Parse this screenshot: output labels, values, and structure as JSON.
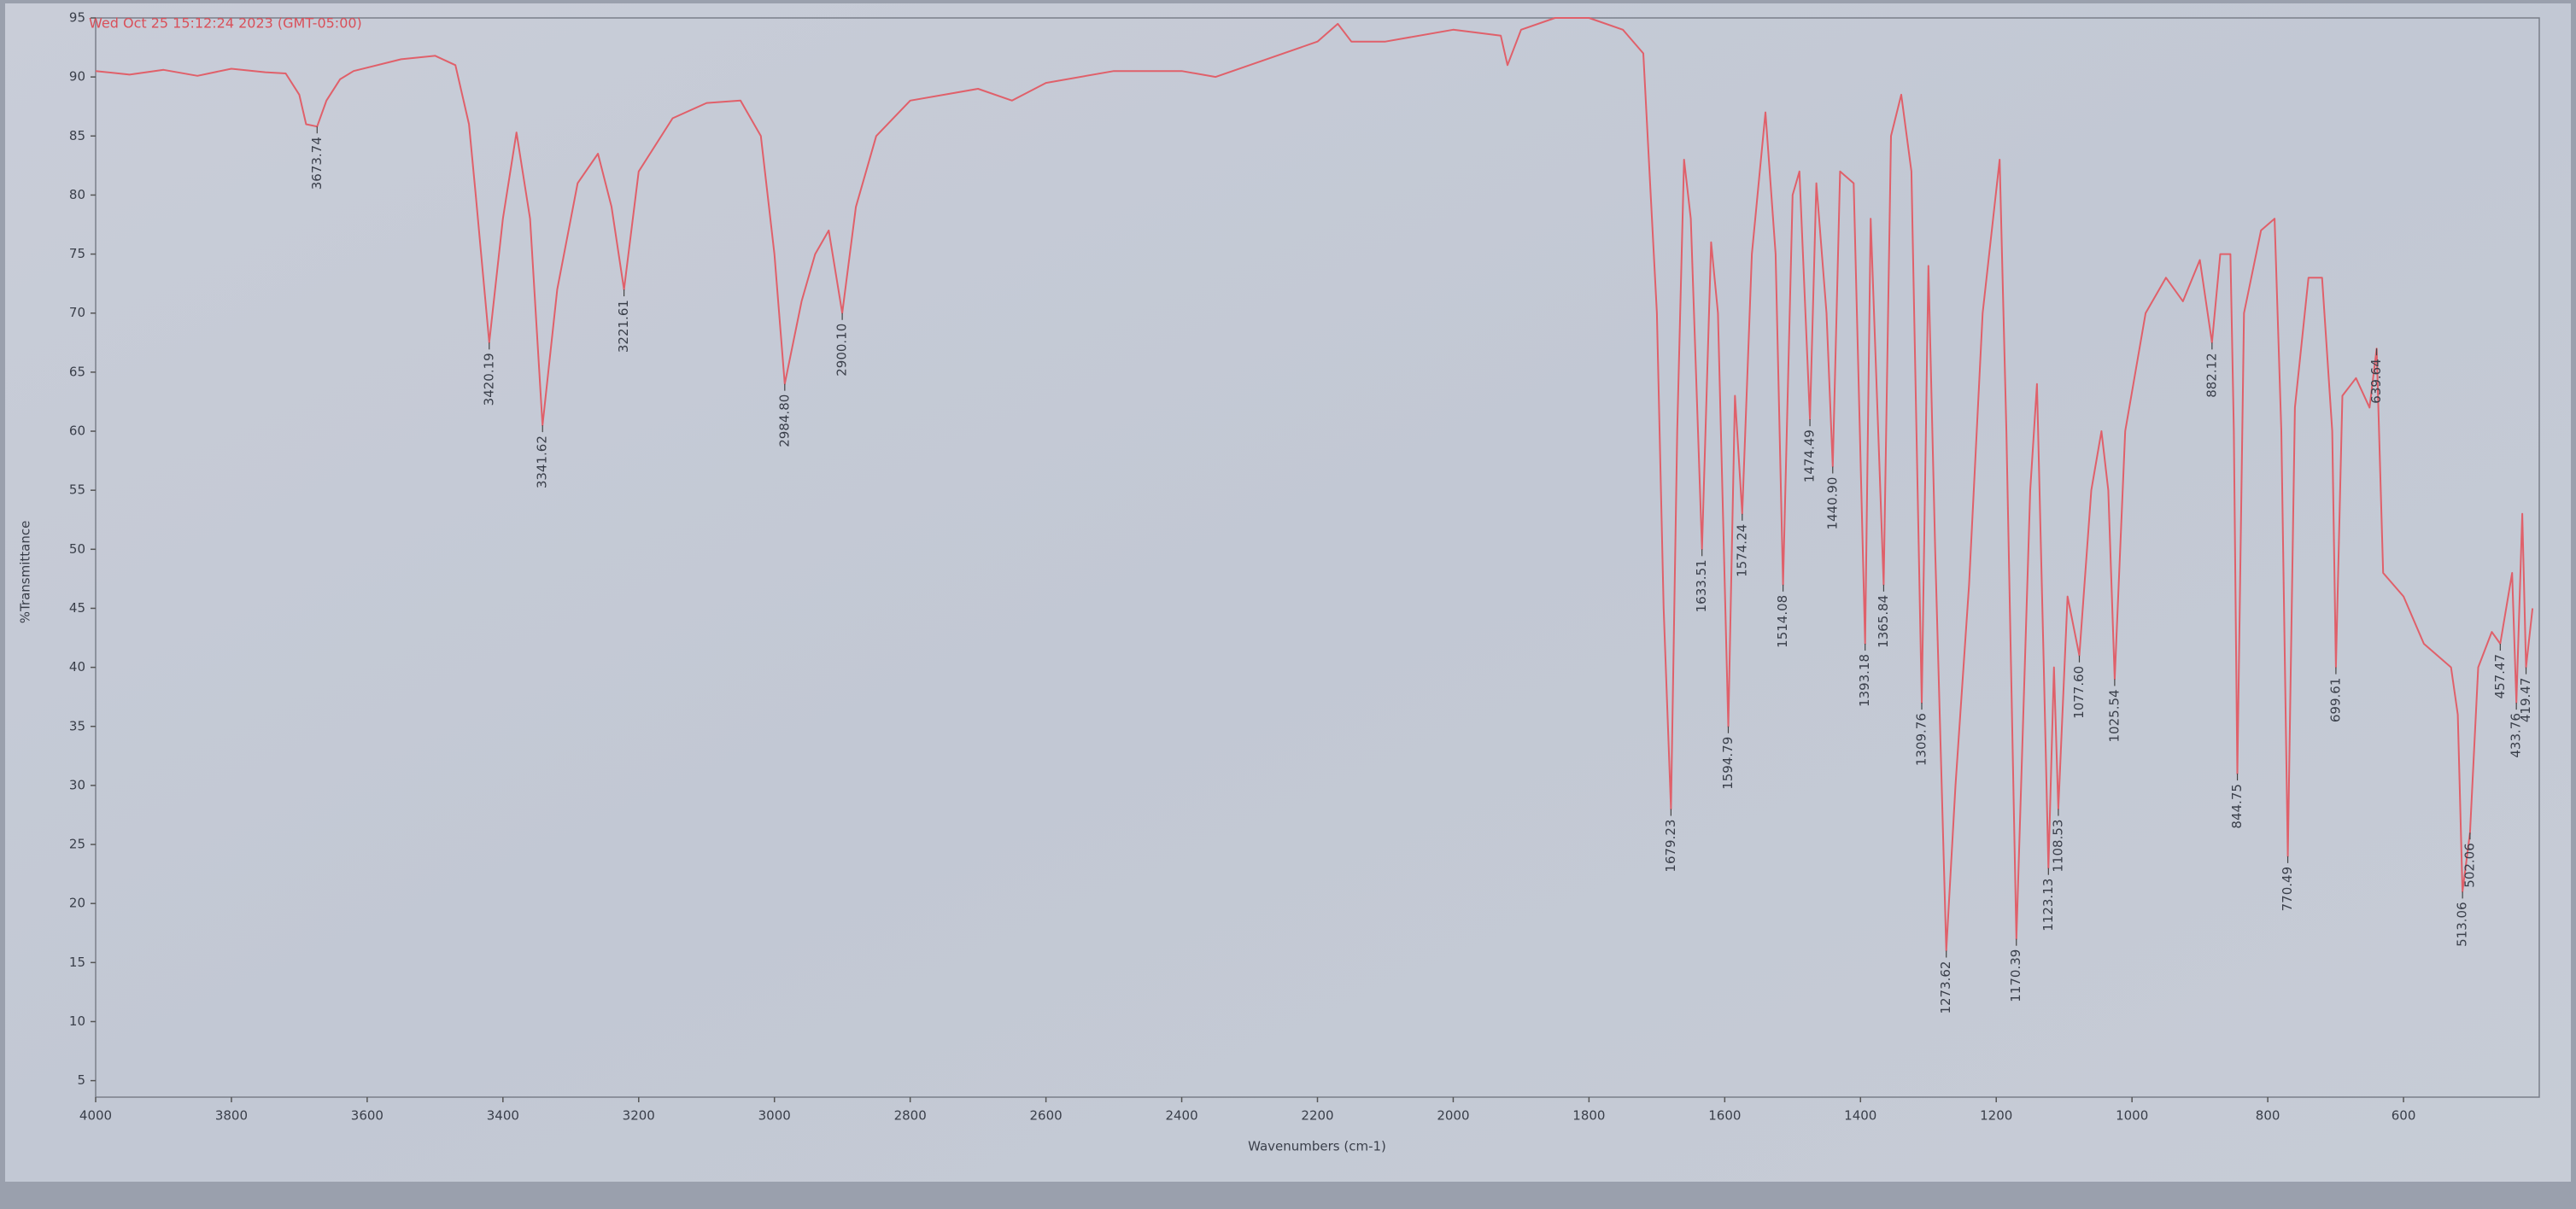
{
  "chart_data": {
    "type": "line",
    "title": "Wed Oct 25 15:12:24 2023 (GMT-05:00)",
    "x_label": "Wavenumbers (cm-1)",
    "y_label": "%Transmittance",
    "color": "#e0606a",
    "xlim": [
      4000,
      400
    ],
    "xticks": [
      4000,
      3800,
      3600,
      3400,
      3200,
      3000,
      2800,
      2600,
      2400,
      2200,
      2000,
      1800,
      1600,
      1400,
      1200,
      1000,
      800,
      600
    ],
    "ylim": [
      3.6,
      95
    ],
    "yticks": [
      5,
      10,
      15,
      20,
      25,
      30,
      35,
      40,
      45,
      50,
      55,
      60,
      65,
      70,
      75,
      80,
      85,
      90,
      95
    ],
    "x": [
      4000,
      3950,
      3900,
      3850,
      3800,
      3750,
      3720,
      3700,
      3690,
      3673.74,
      3660,
      3640,
      3620,
      3550,
      3500,
      3470,
      3450,
      3440,
      3420.19,
      3400,
      3380,
      3360,
      3341.62,
      3320,
      3290,
      3260,
      3240,
      3221.61,
      3200,
      3150,
      3100,
      3050,
      3020,
      3000,
      2984.8,
      2960,
      2940,
      2920,
      2900.1,
      2880,
      2850,
      2800,
      2700,
      2650,
      2600,
      2500,
      2400,
      2350,
      2300,
      2200,
      2170,
      2150,
      2100,
      2000,
      1930,
      1920,
      1900,
      1850,
      1800,
      1750,
      1720,
      1700,
      1690,
      1679.23,
      1670,
      1660,
      1650,
      1633.51,
      1620,
      1610,
      1594.79,
      1585,
      1574.24,
      1560,
      1540,
      1525,
      1514.08,
      1500,
      1490,
      1474.49,
      1465,
      1450,
      1440.9,
      1430,
      1410,
      1393.18,
      1385,
      1365.84,
      1355,
      1340,
      1325,
      1309.76,
      1300,
      1290,
      1273.62,
      1260,
      1240,
      1220,
      1195,
      1185,
      1170.39,
      1150,
      1140,
      1130,
      1123.13,
      1115,
      1108.53,
      1095,
      1077.6,
      1060,
      1045,
      1035,
      1025.54,
      1010,
      980,
      950,
      925,
      900,
      882.12,
      870,
      855,
      850,
      844.75,
      835,
      810,
      790,
      780,
      770.49,
      760,
      740,
      720,
      705,
      699.61,
      690,
      670,
      650,
      639.64,
      630,
      600,
      570,
      530,
      520,
      513.06,
      502.06,
      490,
      470,
      457.47,
      440,
      433.76,
      425,
      419.47,
      410
    ],
    "values": [
      90.5,
      90.2,
      90.6,
      90.1,
      90.7,
      90.4,
      90.3,
      88.5,
      86,
      85.8,
      88,
      89.8,
      90.5,
      91.5,
      91.8,
      91,
      86,
      80,
      67.5,
      78,
      85.3,
      78,
      60.5,
      72,
      81,
      83.5,
      79,
      72,
      82,
      86.5,
      87.8,
      88,
      85,
      75,
      64,
      71,
      75,
      77,
      70,
      79,
      85,
      88,
      89,
      88,
      89.5,
      90.5,
      90.5,
      90,
      91,
      93,
      94.5,
      93,
      93,
      94,
      93.5,
      91,
      94,
      95,
      95,
      94,
      92,
      70,
      45,
      28,
      60,
      83,
      78,
      50,
      76,
      70,
      35,
      63,
      53,
      75,
      87,
      75,
      47,
      80,
      82,
      61,
      81,
      70,
      57,
      82,
      81,
      42,
      78,
      47,
      85,
      88.5,
      82,
      37,
      74,
      50,
      16,
      30,
      47,
      70,
      83,
      60,
      17,
      55,
      64,
      40,
      23,
      40,
      28,
      46,
      41,
      55,
      60,
      55,
      39,
      60,
      70,
      73,
      71,
      74.5,
      67.5,
      75,
      75,
      60,
      31,
      70,
      77,
      78,
      60,
      24,
      62,
      73,
      73,
      60,
      40,
      63,
      64.5,
      62,
      67,
      48,
      46,
      42,
      40,
      36,
      21,
      26,
      40,
      43,
      42,
      48,
      37,
      53,
      40,
      45
    ],
    "peaks": {
      "x": [
        3673.74,
        3420.19,
        3341.62,
        3221.61,
        2984.8,
        2900.1,
        1679.23,
        1633.51,
        1594.79,
        1574.24,
        1514.08,
        1474.49,
        1440.9,
        1393.18,
        1365.84,
        1309.76,
        1273.62,
        1170.39,
        1123.13,
        1108.53,
        1077.6,
        1025.54,
        882.12,
        844.75,
        770.49,
        699.61,
        639.64,
        513.06,
        502.06,
        457.47,
        433.76,
        419.47
      ],
      "y": [
        85.8,
        67.5,
        60.5,
        72,
        64,
        70,
        28,
        50,
        35,
        53,
        47,
        61,
        57,
        42,
        47,
        37,
        16,
        17,
        23,
        28,
        41,
        39,
        67.5,
        31,
        24,
        40,
        67,
        21,
        26,
        42,
        37,
        40
      ],
      "labels": [
        "3673.74",
        "3420.19",
        "3341.62",
        "3221.61",
        "2984.80",
        "2900.10",
        "1679.23",
        "1633.51",
        "1594.79",
        "1574.24",
        "1514.08",
        "1474.49",
        "1440.90",
        "1393.18",
        "1365.84",
        "1309.76",
        "1273.62",
        "1170.39",
        "1123.13",
        "1108.53",
        "1077.60",
        "1025.54",
        "882.12",
        "844.75",
        "770.49",
        "699.61",
        "639.64",
        "513.06",
        "502.06",
        "457.47",
        "433.76",
        "419.47"
      ]
    }
  }
}
